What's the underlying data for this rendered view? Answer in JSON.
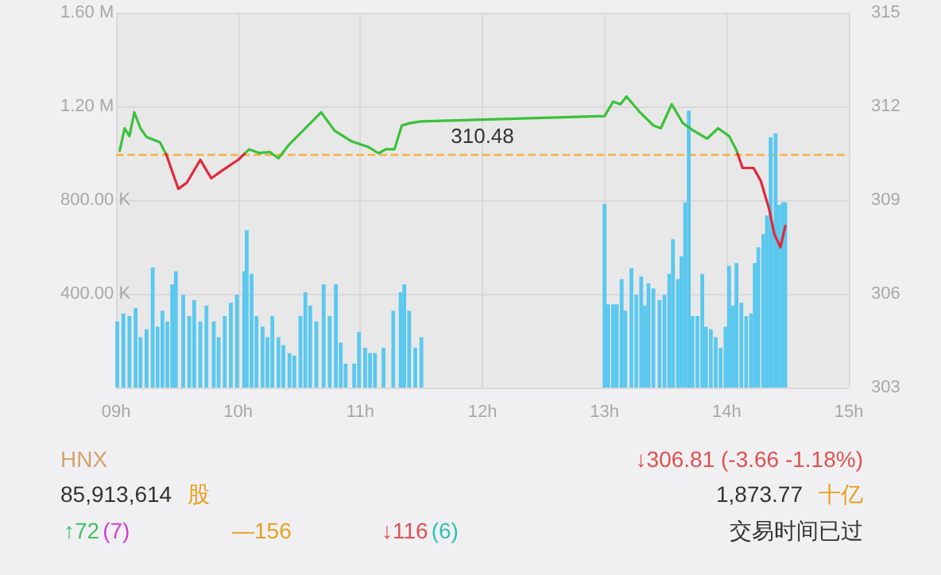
{
  "chart_data": {
    "type": "line",
    "xlim": [
      9,
      15
    ],
    "xticks": [
      {
        "value": 9,
        "label": "09h"
      },
      {
        "value": 10,
        "label": "10h"
      },
      {
        "value": 11,
        "label": "11h"
      },
      {
        "value": 12,
        "label": "12h"
      },
      {
        "value": 13,
        "label": "13h"
      },
      {
        "value": 14,
        "label": "14h"
      },
      {
        "value": 15,
        "label": "15h"
      }
    ],
    "ylim": [
      0,
      1600000
    ],
    "yticks": [
      {
        "value": 0,
        "label": null
      },
      {
        "value": 400000,
        "label": "400.00 K"
      },
      {
        "value": 800000,
        "label": "800.00 K"
      },
      {
        "value": 1200000,
        "label": "1.20 M"
      },
      {
        "value": 1600000,
        "label": "1.60 M"
      }
    ],
    "y2lim": [
      303,
      315
    ],
    "y2ticks": [
      303,
      306,
      309,
      312,
      315
    ],
    "grid": true,
    "marker": "none",
    "line_style": "solid",
    "ref_lines": [
      {
        "axis": "y2",
        "value": 310.48,
        "label": "310.48",
        "color": "#f5b041",
        "line_style": "dashed"
      }
    ],
    "series": [
      {
        "type": "bar",
        "color": "#5bc8ee",
        "x": [
          9.01,
          9.06,
          9.11,
          9.16,
          9.2,
          9.25,
          9.3,
          9.34,
          9.38,
          9.42,
          9.46,
          9.49,
          9.55,
          9.6,
          9.64,
          9.69,
          9.74,
          9.8,
          9.84,
          9.89,
          9.94,
          9.99,
          10.05,
          10.07,
          10.11,
          10.15,
          10.2,
          10.24,
          10.28,
          10.33,
          10.37,
          10.42,
          10.46,
          10.51,
          10.55,
          10.59,
          10.64,
          10.7,
          10.75,
          10.8,
          10.84,
          10.88,
          10.95,
          10.99,
          11.04,
          11.08,
          11.12,
          11.19,
          11.27,
          11.33,
          11.36,
          11.4,
          11.45,
          11.5,
          13,
          13.03,
          13.07,
          13.1,
          13.14,
          13.17,
          13.22,
          13.26,
          13.3,
          13.33,
          13.36,
          13.4,
          13.45,
          13.49,
          13.53,
          13.56,
          13.6,
          13.63,
          13.66,
          13.69,
          13.72,
          13.76,
          13.8,
          13.83,
          13.87,
          13.91,
          13.95,
          13.99,
          14.02,
          14.05,
          14.08,
          14.12,
          14.16,
          14.2,
          14.23,
          14.26,
          14.3,
          14.33,
          14.36,
          14.37,
          14.4,
          14.43,
          14.46,
          14.48
        ],
        "values": [
          282000,
          316000,
          305000,
          339000,
          215000,
          249000,
          513000,
          260000,
          328000,
          282000,
          441000,
          497000,
          396000,
          305000,
          373000,
          282000,
          350000,
          282000,
          215000,
          305000,
          362000,
          396000,
          497000,
          671000,
          486000,
          305000,
          260000,
          215000,
          305000,
          215000,
          181000,
          147000,
          136000,
          305000,
          407000,
          350000,
          282000,
          441000,
          305000,
          441000,
          192000,
          102000,
          102000,
          237000,
          170000,
          147000,
          147000,
          170000,
          328000,
          407000,
          441000,
          328000,
          170000,
          215000,
          784000,
          355000,
          355000,
          355000,
          463000,
          328000,
          509000,
          396000,
          475000,
          350000,
          445000,
          423000,
          373000,
          396000,
          486000,
          633000,
          463000,
          560000,
          791000,
          1182000,
          305000,
          305000,
          486000,
          260000,
          249000,
          215000,
          170000,
          260000,
          520000,
          350000,
          531000,
          362000,
          305000,
          316000,
          531000,
          599000,
          655000,
          735000,
          1069000,
          689000,
          1085000,
          780000,
          791000,
          791000
        ]
      },
      {
        "axis": "y2",
        "color": "#3cc13b",
        "x": [
          9.03,
          9.07,
          9.11,
          9.15,
          9.2,
          9.25,
          9.36,
          9.4,
          9.41,
          null,
          10.05,
          10.09,
          10.17,
          10.26,
          10.33,
          10.42,
          10.53,
          10.68,
          10.79,
          10.93,
          11.06,
          11.15,
          11.21,
          11.28,
          11.34,
          11.41,
          11.5,
          13,
          13.07,
          13.13,
          13.18,
          13.29,
          13.4,
          13.46,
          13.55,
          13.64,
          13.73,
          13.84,
          13.93,
          14.02,
          14.08,
          14.09
        ],
        "values": [
          310.58,
          311.3,
          311.05,
          311.81,
          311.3,
          311.02,
          310.85,
          310.54,
          310.48,
          null,
          310.48,
          310.63,
          310.51,
          310.54,
          310.34,
          310.79,
          311.22,
          311.81,
          311.22,
          310.88,
          310.71,
          310.5,
          310.63,
          310.63,
          311.39,
          311.47,
          311.52,
          311.69,
          312.15,
          312.07,
          312.32,
          311.81,
          311.39,
          311.3,
          312.07,
          311.47,
          311.22,
          310.97,
          311.3,
          311.05,
          310.6,
          310.48
        ]
      },
      {
        "axis": "y2",
        "color": "#e0283a",
        "x": [
          9.41,
          9.45,
          9.51,
          9.58,
          9.69,
          9.78,
          9.87,
          10,
          10.05,
          null,
          14.09,
          14.13,
          14.22,
          14.28,
          14.35,
          14.39,
          14.44,
          14.48
        ],
        "values": [
          310.48,
          310.03,
          309.36,
          309.56,
          310.29,
          309.7,
          309.95,
          310.29,
          310.48,
          null,
          310.48,
          310.03,
          310.03,
          309.61,
          308.68,
          307.92,
          307.49,
          308.17
        ]
      }
    ],
    "annotations": [
      "HNX",
      "↓306.81 (-3.66 -1.18%)",
      "85,913,614",
      "股",
      "1,873.77",
      "十亿",
      "↑72",
      "(7)",
      "—156",
      "↓116",
      "(6)",
      "交易时间已过"
    ]
  }
}
